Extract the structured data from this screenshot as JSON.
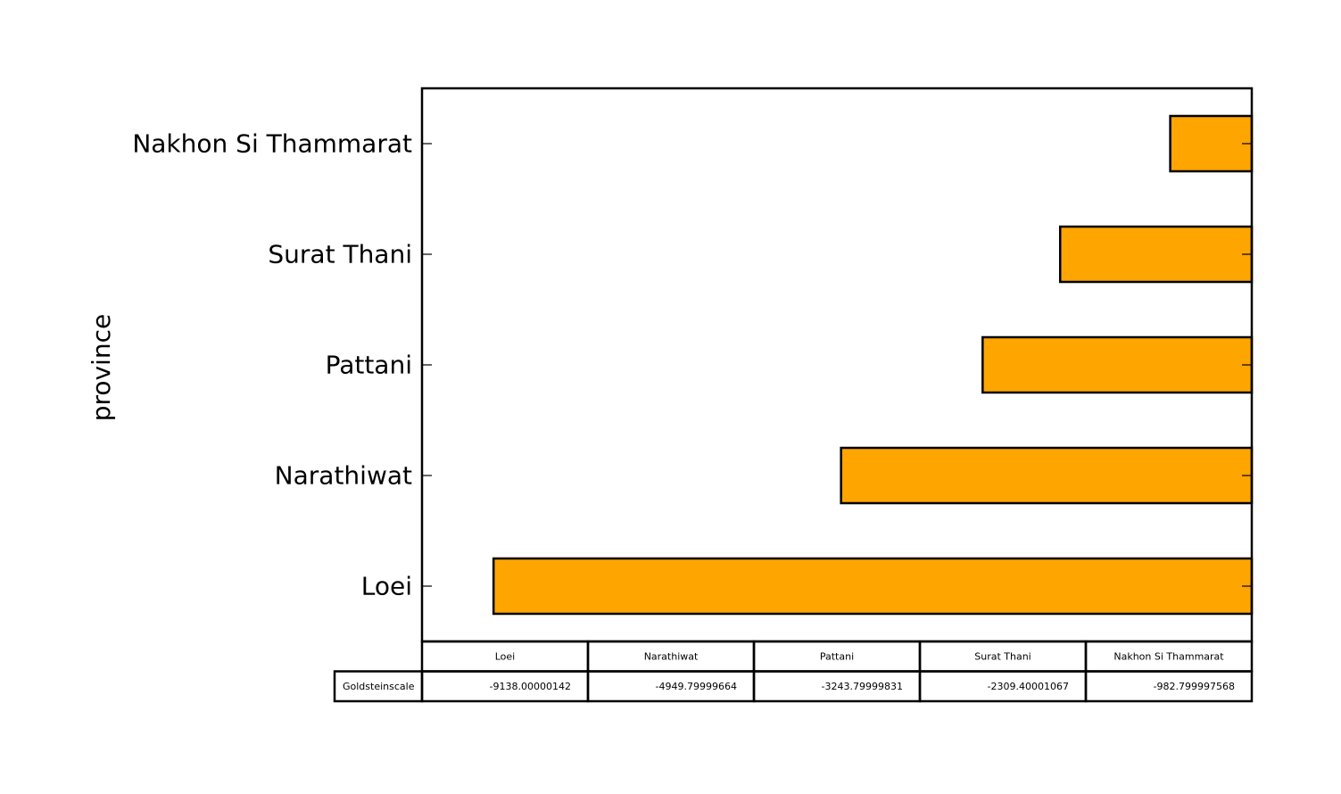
{
  "chart_data": {
    "type": "bar",
    "orientation": "horizontal",
    "ylabel": "province",
    "categories": [
      "Loei",
      "Narathiwat",
      "Pattani",
      "Surat Thani",
      "Nakhon Si Thammarat"
    ],
    "series": [
      {
        "name": "Goldsteinscale",
        "values": [
          -9138.00000142,
          -4949.79999664,
          -3243.79999831,
          -2309.40001067,
          -982.799997568
        ],
        "value_labels": [
          "-9138.00000142",
          "-4949.79999664",
          "-3243.79999831",
          "-2309.40001067",
          "-982.799997568"
        ]
      }
    ],
    "xlim": [
      -10000,
      0
    ],
    "bar_color": "#ffa500",
    "edge_color": "#000000",
    "grid": false,
    "legend": "none",
    "table": {
      "row_labels": [
        "Goldsteinscale"
      ],
      "col_labels": [
        "Loei",
        "Narathiwat",
        "Pattani",
        "Surat Thani",
        "Nakhon Si Thammarat"
      ]
    }
  }
}
